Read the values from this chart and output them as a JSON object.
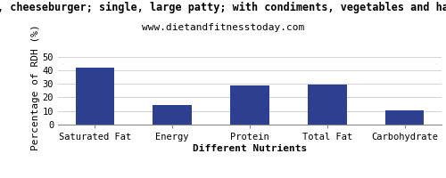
{
  "title_line1": ", cheeseburger; single, large patty; with condiments, vegetables and ha",
  "title_line2": "www.dietandfitnesstoday.com",
  "categories": [
    "Saturated Fat",
    "Energy",
    "Protein",
    "Total Fat",
    "Carbohydrate"
  ],
  "values": [
    42,
    14.5,
    28.5,
    29.5,
    10.5
  ],
  "bar_color": "#2e3f8f",
  "ylabel": "Percentage of RDH (%)",
  "xlabel": "Different Nutrients",
  "ylim": [
    0,
    55
  ],
  "yticks": [
    0,
    10,
    20,
    30,
    40,
    50
  ],
  "background_color": "#ffffff",
  "title1_fontsize": 8.5,
  "title2_fontsize": 8.0,
  "axis_label_fontsize": 8,
  "tick_fontsize": 7.5
}
